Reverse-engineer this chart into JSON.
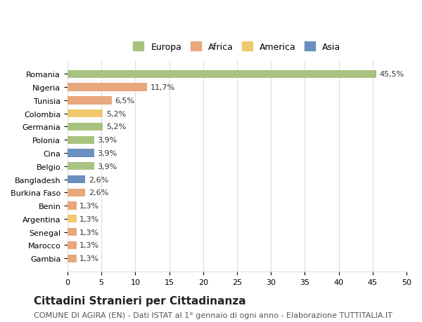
{
  "categories": [
    "Romania",
    "Nigeria",
    "Tunisia",
    "Colombia",
    "Germania",
    "Polonia",
    "Cina",
    "Belgio",
    "Bangladesh",
    "Burkina Faso",
    "Benin",
    "Argentina",
    "Senegal",
    "Marocco",
    "Gambia"
  ],
  "values": [
    45.5,
    11.7,
    6.5,
    5.2,
    5.2,
    3.9,
    3.9,
    3.9,
    2.6,
    2.6,
    1.3,
    1.3,
    1.3,
    1.3,
    1.3
  ],
  "labels": [
    "45,5%",
    "11,7%",
    "6,5%",
    "5,2%",
    "5,2%",
    "3,9%",
    "3,9%",
    "3,9%",
    "2,6%",
    "2,6%",
    "1,3%",
    "1,3%",
    "1,3%",
    "1,3%",
    "1,3%"
  ],
  "continents": [
    "Europa",
    "Africa",
    "Africa",
    "America",
    "Europa",
    "Europa",
    "Asia",
    "Europa",
    "Asia",
    "Africa",
    "Africa",
    "America",
    "Africa",
    "Africa",
    "Africa"
  ],
  "colors": {
    "Europa": "#a8c37f",
    "Africa": "#e8a87c",
    "America": "#f0c96e",
    "Asia": "#6b8fbf"
  },
  "legend_labels": [
    "Europa",
    "Africa",
    "America",
    "Asia"
  ],
  "legend_colors": [
    "#a8c37f",
    "#e8a87c",
    "#f0c96e",
    "#6b8fbf"
  ],
  "title": "Cittadini Stranieri per Cittadinanza",
  "subtitle": "COMUNE DI AGIRA (EN) - Dati ISTAT al 1° gennaio di ogni anno - Elaborazione TUTTITALIA.IT",
  "xlim": [
    0,
    50
  ],
  "xticks": [
    0,
    5,
    10,
    15,
    20,
    25,
    30,
    35,
    40,
    45,
    50
  ],
  "background_color": "#ffffff",
  "grid_color": "#dddddd",
  "bar_height": 0.6,
  "label_fontsize": 8,
  "tick_fontsize": 8,
  "title_fontsize": 11,
  "subtitle_fontsize": 8
}
